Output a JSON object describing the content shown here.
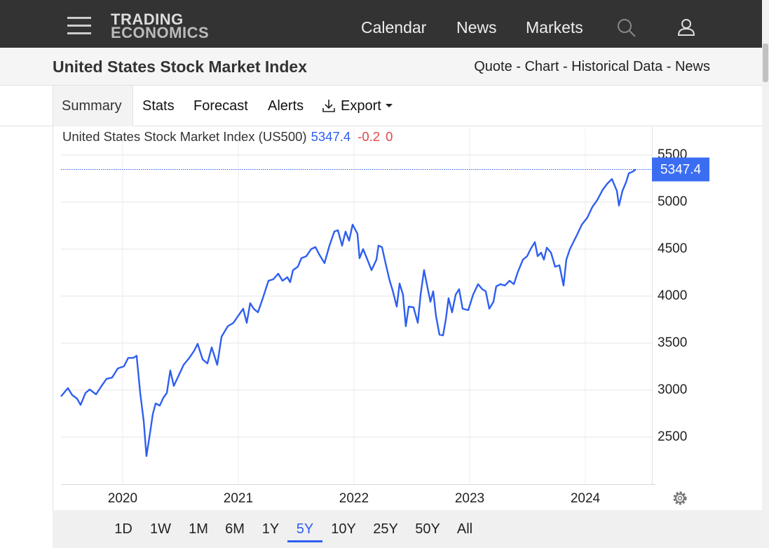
{
  "nav": {
    "logo_top": "TRADING",
    "logo_bottom": "ECONOMICS",
    "links": [
      "Calendar",
      "News",
      "Markets"
    ]
  },
  "header": {
    "title": "United States Stock Market Index",
    "subnav": "Quote - Chart - Historical Data - News"
  },
  "tabs": [
    "Summary",
    "Stats",
    "Forecast",
    "Alerts",
    "Export"
  ],
  "ranges": [
    "1D",
    "1W",
    "1M",
    "6M",
    "1Y",
    "5Y",
    "10Y",
    "25Y",
    "50Y",
    "All"
  ],
  "active_range": "5Y",
  "chart_data": {
    "type": "line",
    "title": "United States Stock Market Index (US500)",
    "price": 5347.4,
    "change": -0.2,
    "change_pct": 0,
    "color": "#2e5ff0",
    "grid": true,
    "xlim": [
      2019.467,
      2024.576
    ],
    "xticks": [
      2020,
      2021,
      2022,
      2023,
      2024
    ],
    "ylim": [
      2000,
      5784
    ],
    "yticks": [
      2500,
      3000,
      3500,
      4000,
      4500,
      5000,
      5500
    ],
    "x": [
      2019.467,
      2019.527,
      2019.564,
      2019.606,
      2019.636,
      2019.679,
      2019.715,
      2019.77,
      2019.818,
      2019.861,
      2019.909,
      2019.958,
      2020.012,
      2020.048,
      2020.091,
      2020.121,
      2020.152,
      2020.182,
      2020.206,
      2020.236,
      2020.261,
      2020.285,
      2020.321,
      2020.352,
      2020.382,
      2020.412,
      2020.442,
      2020.485,
      2020.527,
      2020.576,
      2020.618,
      2020.648,
      2020.691,
      2020.733,
      2020.77,
      2020.818,
      2020.855,
      2020.909,
      2020.958,
      2021.0,
      2021.042,
      2021.073,
      2021.103,
      2021.133,
      2021.17,
      2021.212,
      2021.261,
      2021.303,
      2021.345,
      2021.382,
      2021.424,
      2021.448,
      2021.473,
      2021.515,
      2021.545,
      2021.588,
      2021.63,
      2021.667,
      2021.697,
      2021.745,
      2021.788,
      2021.83,
      2021.861,
      2021.897,
      2021.927,
      2021.958,
      2021.988,
      2022.03,
      2022.048,
      2022.079,
      2022.121,
      2022.152,
      2022.194,
      2022.212,
      2022.242,
      2022.273,
      2022.309,
      2022.333,
      2022.37,
      2022.394,
      2022.424,
      2022.448,
      2022.473,
      2022.515,
      2022.552,
      2022.576,
      2022.606,
      2022.636,
      2022.661,
      2022.685,
      2022.709,
      2022.739,
      2022.77,
      2022.794,
      2022.818,
      2022.848,
      2022.879,
      2022.909,
      2022.939,
      2022.988,
      2023.03,
      2023.073,
      2023.109,
      2023.139,
      2023.17,
      2023.206,
      2023.23,
      2023.267,
      2023.303,
      2023.345,
      2023.382,
      2023.418,
      2023.461,
      2023.497,
      2023.527,
      2023.564,
      2023.588,
      2023.618,
      2023.642,
      2023.667,
      2023.703,
      2023.739,
      2023.776,
      2023.812,
      2023.836,
      2023.867,
      2023.897,
      2023.927,
      2023.97,
      2024.018,
      2024.061,
      2024.103,
      2024.152,
      2024.188,
      2024.23,
      2024.273,
      2024.291,
      2024.321,
      2024.352,
      2024.376,
      2024.406,
      2024.436
    ],
    "values": [
      2933,
      3022,
      2948,
      2910,
      2843,
      2970,
      3007,
      2955,
      3045,
      3120,
      3134,
      3231,
      3254,
      3343,
      3343,
      3366,
      2970,
      2672,
      2299,
      2537,
      2746,
      2858,
      2836,
      2918,
      2970,
      3209,
      3045,
      3157,
      3269,
      3343,
      3418,
      3493,
      3328,
      3284,
      3455,
      3269,
      3567,
      3679,
      3716,
      3791,
      3866,
      3716,
      3925,
      3866,
      3828,
      3978,
      4164,
      4179,
      4239,
      4164,
      4201,
      4149,
      4276,
      4313,
      4403,
      4425,
      4500,
      4522,
      4448,
      4351,
      4537,
      4687,
      4701,
      4537,
      4687,
      4590,
      4761,
      4664,
      4403,
      4500,
      4373,
      4276,
      4388,
      4537,
      4522,
      4351,
      4164,
      4067,
      3888,
      4134,
      4015,
      3679,
      3888,
      3881,
      3716,
      4015,
      4276,
      4089,
      3940,
      4052,
      3791,
      3590,
      3582,
      3754,
      3978,
      3828,
      4015,
      4074,
      3866,
      3851,
      4015,
      4127,
      4074,
      4052,
      3866,
      3940,
      4104,
      4127,
      4112,
      4164,
      4127,
      4261,
      4388,
      4425,
      4500,
      4575,
      4425,
      4463,
      4388,
      4515,
      4463,
      4313,
      4328,
      4112,
      4388,
      4500,
      4575,
      4649,
      4761,
      4836,
      4948,
      5022,
      5134,
      5194,
      5246,
      5119,
      4963,
      5119,
      5209,
      5306,
      5321,
      5347.4
    ]
  }
}
